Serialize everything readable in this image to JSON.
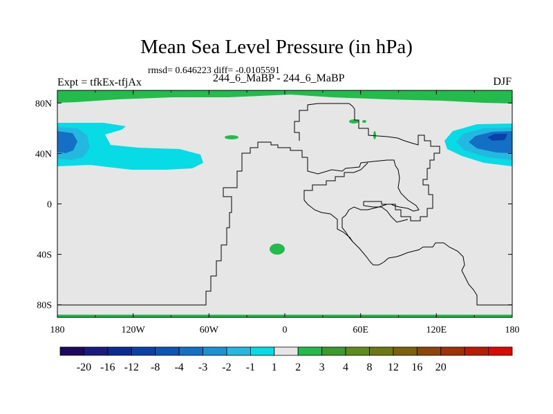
{
  "chart_data": {
    "type": "heatmap",
    "title": "Mean Sea Level Pressure (in hPa)",
    "stats_text": "rmsd= 0.646223  diff= -0.0105591",
    "experiment_label": "Expt = tfkEx-tfjAx",
    "comparison_label": "244_6_MaBP - 244_6_MaBP",
    "season": "DJF",
    "x_ticks": [
      "180",
      "120W",
      "60W",
      "0",
      "60E",
      "120E",
      "180"
    ],
    "y_ticks": [
      "80N",
      "40N",
      "0",
      "40S",
      "80S"
    ],
    "xlim": [
      -180,
      180
    ],
    "ylim": [
      -90,
      90
    ],
    "colorbar": {
      "labels": [
        "-20",
        "-16",
        "-12",
        "-8",
        "-4",
        "-3",
        "-2",
        "-1",
        "1",
        "2",
        "3",
        "4",
        "8",
        "12",
        "16",
        "20"
      ],
      "colors": [
        "#1d0a5e",
        "#1a1a80",
        "#0b2a95",
        "#0a40a8",
        "#0a55b5",
        "#1370c4",
        "#1a93d4",
        "#22b8e0",
        "#06dbe6",
        "#e6e6e6",
        "#22bb4c",
        "#3c9a2c",
        "#5e8c1c",
        "#6e7812",
        "#7c600c",
        "#8c4408",
        "#a03006",
        "#b81c04",
        "#d80a02"
      ]
    }
  }
}
